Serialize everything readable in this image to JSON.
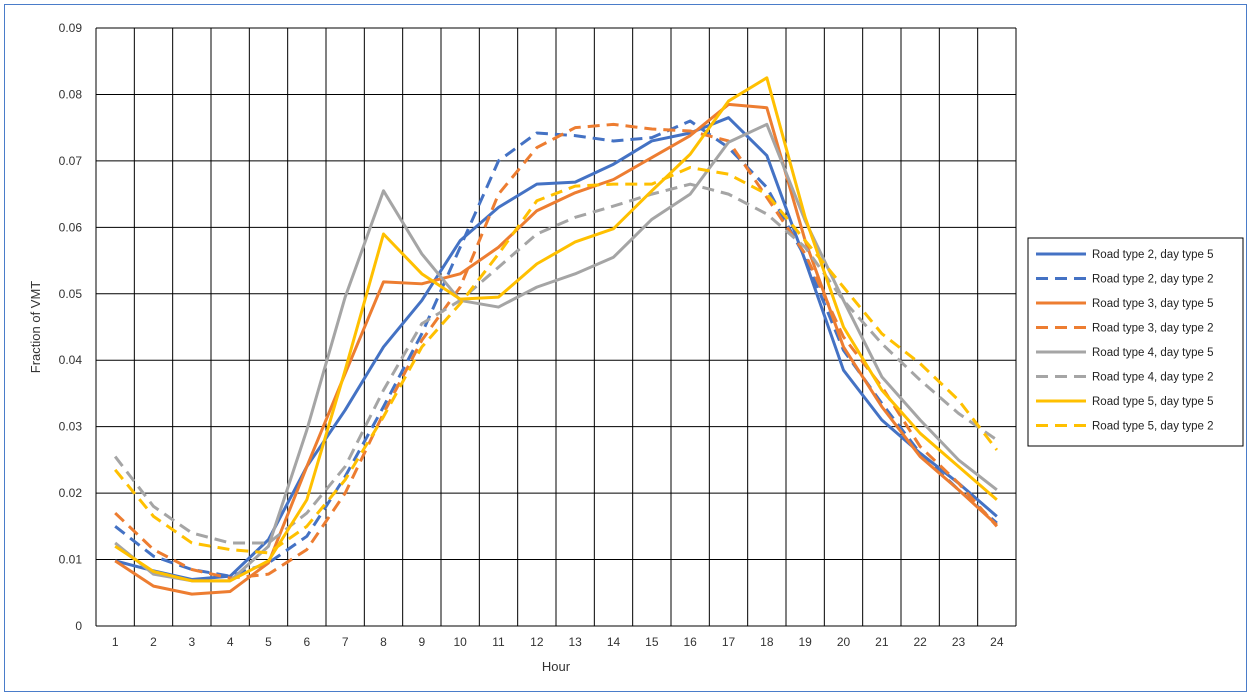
{
  "chart_data": {
    "type": "line",
    "xlabel": "Hour",
    "ylabel": "Fraction of VMT",
    "x": [
      1,
      2,
      3,
      4,
      5,
      6,
      7,
      8,
      9,
      10,
      11,
      12,
      13,
      14,
      15,
      16,
      17,
      18,
      19,
      20,
      21,
      22,
      23,
      24
    ],
    "xlim": [
      0.5,
      24.5
    ],
    "ylim": [
      0,
      0.09
    ],
    "yticks": [
      "0",
      "0.01",
      "0.02",
      "0.03",
      "0.04",
      "0.05",
      "0.06",
      "0.07",
      "0.08",
      "0.09"
    ],
    "grid": true,
    "legend_position": "right",
    "series": [
      {
        "name": "Road type 2, day type 5",
        "color": "#4472c4",
        "dash": "solid",
        "values": [
          0.0098,
          0.0083,
          0.007,
          0.0075,
          0.013,
          0.024,
          0.0325,
          0.042,
          0.049,
          0.058,
          0.063,
          0.0665,
          0.0668,
          0.0695,
          0.073,
          0.0742,
          0.0765,
          0.0708,
          0.055,
          0.0385,
          0.031,
          0.026,
          0.0215,
          0.0165
        ]
      },
      {
        "name": "Road type 2, day type 2",
        "color": "#4472c4",
        "dash": "dashed",
        "values": [
          0.015,
          0.0105,
          0.0085,
          0.0075,
          0.0095,
          0.0135,
          0.0225,
          0.033,
          0.044,
          0.057,
          0.07,
          0.0742,
          0.0738,
          0.073,
          0.0735,
          0.076,
          0.072,
          0.066,
          0.0555,
          0.0415,
          0.0335,
          0.026,
          0.0205,
          0.0155
        ]
      },
      {
        "name": "Road type 3, day type 5",
        "color": "#ed7d31",
        "dash": "solid",
        "values": [
          0.0098,
          0.006,
          0.0048,
          0.0052,
          0.0095,
          0.024,
          0.038,
          0.0518,
          0.0515,
          0.053,
          0.057,
          0.0625,
          0.0652,
          0.0672,
          0.0705,
          0.0738,
          0.0785,
          0.078,
          0.058,
          0.042,
          0.033,
          0.0255,
          0.0205,
          0.0152
        ]
      },
      {
        "name": "Road type 3, day type 2",
        "color": "#ed7d31",
        "dash": "dashed",
        "values": [
          0.017,
          0.0115,
          0.0085,
          0.0072,
          0.0078,
          0.0115,
          0.02,
          0.032,
          0.043,
          0.051,
          0.065,
          0.072,
          0.075,
          0.0755,
          0.0748,
          0.0745,
          0.073,
          0.0645,
          0.056,
          0.0435,
          0.036,
          0.027,
          0.0215,
          0.015
        ]
      },
      {
        "name": "Road type 4, day type 5",
        "color": "#a5a5a5",
        "dash": "solid",
        "values": [
          0.0125,
          0.0078,
          0.0068,
          0.0068,
          0.012,
          0.0295,
          0.0495,
          0.0655,
          0.056,
          0.049,
          0.048,
          0.051,
          0.053,
          0.0555,
          0.0612,
          0.065,
          0.0728,
          0.0755,
          0.061,
          0.049,
          0.0375,
          0.031,
          0.025,
          0.0205
        ]
      },
      {
        "name": "Road type 4, day type 2",
        "color": "#a5a5a5",
        "dash": "dashed",
        "values": [
          0.0255,
          0.018,
          0.014,
          0.0125,
          0.0125,
          0.017,
          0.024,
          0.0355,
          0.0455,
          0.049,
          0.054,
          0.059,
          0.0615,
          0.0632,
          0.065,
          0.0665,
          0.065,
          0.062,
          0.057,
          0.049,
          0.0425,
          0.037,
          0.032,
          0.028
        ]
      },
      {
        "name": "Road type 5, day type 5",
        "color": "#ffc000",
        "dash": "solid",
        "values": [
          0.012,
          0.0082,
          0.0068,
          0.0068,
          0.0098,
          0.019,
          0.0385,
          0.059,
          0.053,
          0.0492,
          0.0495,
          0.0545,
          0.0578,
          0.0598,
          0.0655,
          0.071,
          0.079,
          0.0825,
          0.0615,
          0.045,
          0.0355,
          0.029,
          0.024,
          0.019
        ]
      },
      {
        "name": "Road type 5, day type 2",
        "color": "#ffc000",
        "dash": "dashed",
        "values": [
          0.0235,
          0.0165,
          0.0125,
          0.0115,
          0.011,
          0.015,
          0.022,
          0.0315,
          0.042,
          0.0485,
          0.056,
          0.064,
          0.0662,
          0.0665,
          0.0665,
          0.069,
          0.068,
          0.065,
          0.058,
          0.051,
          0.044,
          0.0395,
          0.034,
          0.0265
        ]
      }
    ]
  }
}
